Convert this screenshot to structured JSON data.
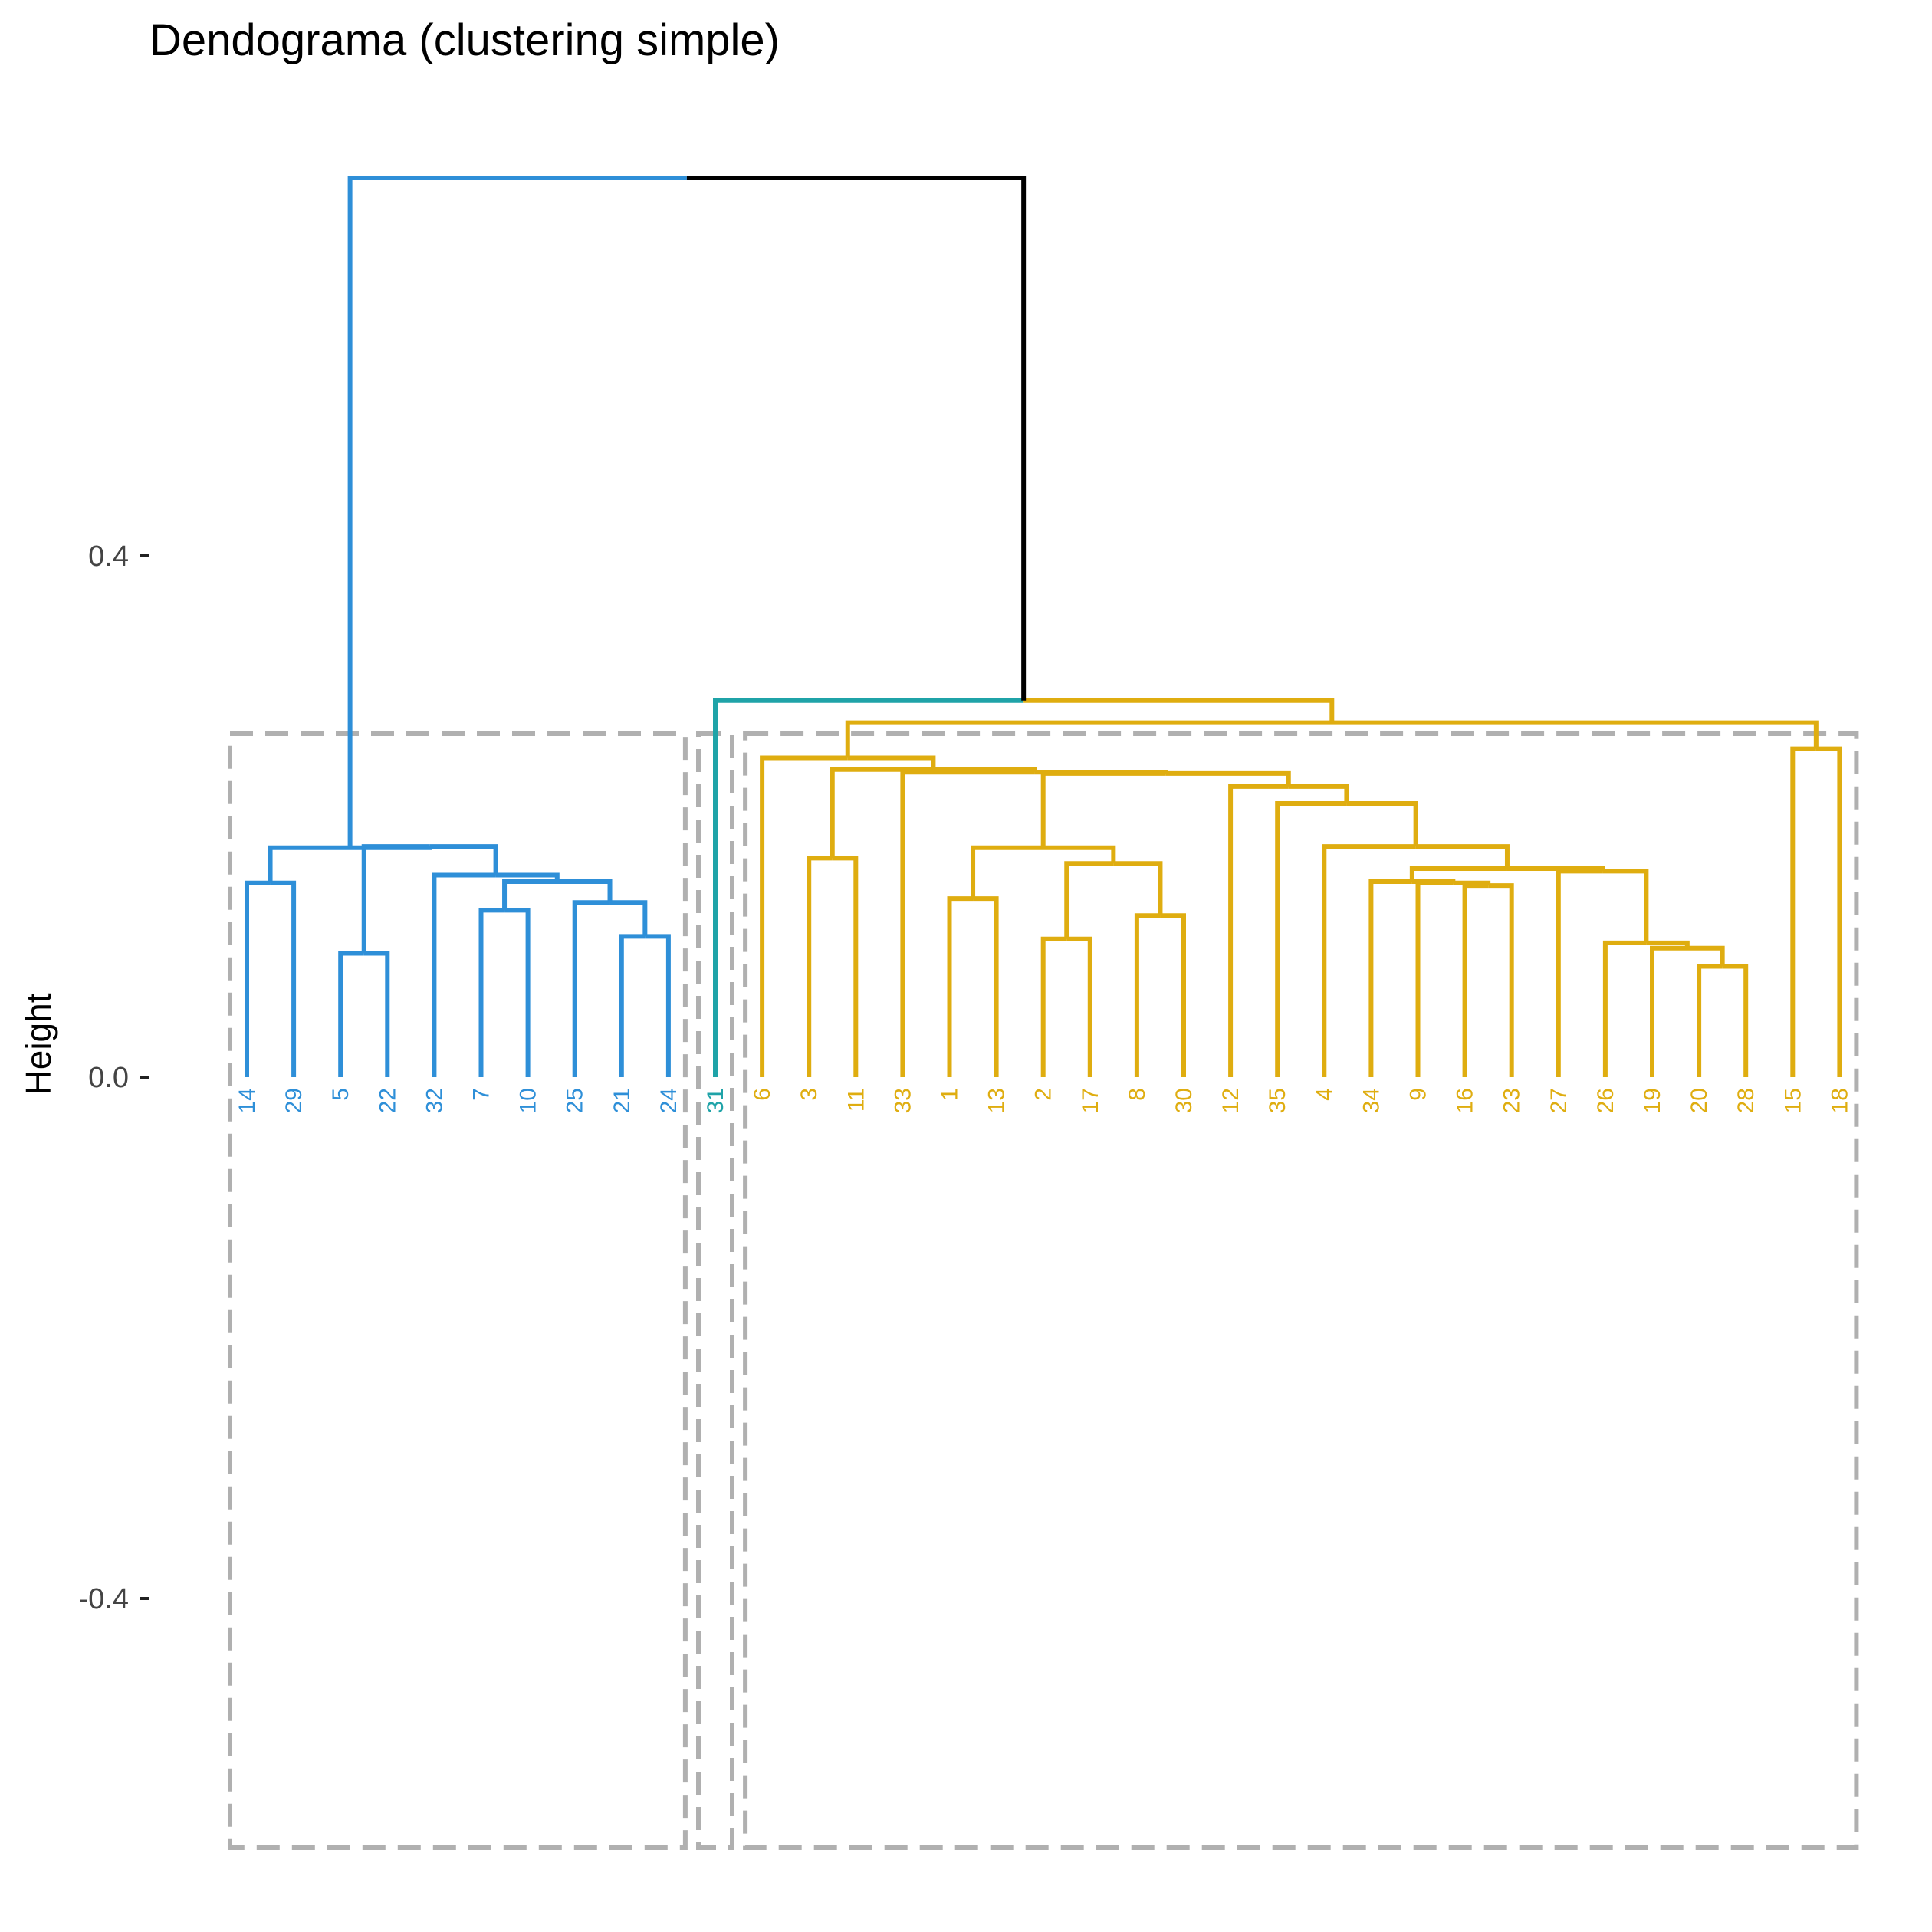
{
  "chart_data": {
    "type": "dendrogram",
    "title": "Dendograma (clustering simple)",
    "ylabel": "Height",
    "ylim": [
      -0.6,
      0.7
    ],
    "yticks": [
      0.4,
      0.0,
      -0.4
    ],
    "ytick_labels": [
      "0.4",
      "0.0",
      "-0.4"
    ],
    "grid": false,
    "legend": "none",
    "leaves": [
      {
        "label": "14",
        "cluster": 1
      },
      {
        "label": "29",
        "cluster": 1
      },
      {
        "label": "5",
        "cluster": 1
      },
      {
        "label": "22",
        "cluster": 1
      },
      {
        "label": "32",
        "cluster": 1
      },
      {
        "label": "7",
        "cluster": 1
      },
      {
        "label": "10",
        "cluster": 1
      },
      {
        "label": "25",
        "cluster": 1
      },
      {
        "label": "21",
        "cluster": 1
      },
      {
        "label": "24",
        "cluster": 1
      },
      {
        "label": "31",
        "cluster": 2
      },
      {
        "label": "6",
        "cluster": 3
      },
      {
        "label": "3",
        "cluster": 3
      },
      {
        "label": "11",
        "cluster": 3
      },
      {
        "label": "33",
        "cluster": 3
      },
      {
        "label": "1",
        "cluster": 3
      },
      {
        "label": "13",
        "cluster": 3
      },
      {
        "label": "2",
        "cluster": 3
      },
      {
        "label": "17",
        "cluster": 3
      },
      {
        "label": "8",
        "cluster": 3
      },
      {
        "label": "30",
        "cluster": 3
      },
      {
        "label": "12",
        "cluster": 3
      },
      {
        "label": "35",
        "cluster": 3
      },
      {
        "label": "4",
        "cluster": 3
      },
      {
        "label": "34",
        "cluster": 3
      },
      {
        "label": "9",
        "cluster": 3
      },
      {
        "label": "16",
        "cluster": 3
      },
      {
        "label": "23",
        "cluster": 3
      },
      {
        "label": "27",
        "cluster": 3
      },
      {
        "label": "26",
        "cluster": 3
      },
      {
        "label": "19",
        "cluster": 3
      },
      {
        "label": "20",
        "cluster": 3
      },
      {
        "label": "28",
        "cluster": 3
      },
      {
        "label": "15",
        "cluster": 3
      },
      {
        "label": "18",
        "cluster": 3
      }
    ],
    "merges": [
      {
        "a": "14",
        "b": "29",
        "height": 0.149
      },
      {
        "a": "5",
        "b": "22",
        "height": 0.095
      },
      {
        "a": "7",
        "b": "10",
        "height": 0.128
      },
      {
        "a": "21",
        "b": "24",
        "height": 0.108
      },
      {
        "a": "25",
        "b": [
          "21",
          "24"
        ],
        "height": 0.134
      },
      {
        "a": [
          "7",
          "10"
        ],
        "b": [
          "25",
          "21",
          "24"
        ],
        "height": 0.15
      },
      {
        "a": "32",
        "b": [
          "7",
          "10",
          "25",
          "21",
          "24"
        ],
        "height": 0.155
      },
      {
        "a": [
          "5",
          "22"
        ],
        "b": [
          "32",
          "7",
          "10",
          "25",
          "21",
          "24"
        ],
        "height": 0.177
      },
      {
        "a": [
          "14",
          "29"
        ],
        "b": [
          "5",
          "22",
          "32",
          "7",
          "10",
          "25",
          "21",
          "24"
        ],
        "height": 0.176
      },
      {
        "a": "3",
        "b": "11",
        "height": 0.168
      },
      {
        "a": "1",
        "b": "13",
        "height": 0.137
      },
      {
        "a": "2",
        "b": "17",
        "height": 0.106
      },
      {
        "a": "8",
        "b": "30",
        "height": 0.124
      },
      {
        "a": [
          "2",
          "17"
        ],
        "b": [
          "8",
          "30"
        ],
        "height": 0.164
      },
      {
        "a": [
          "1",
          "13"
        ],
        "b": [
          "2",
          "17",
          "8",
          "30"
        ],
        "height": 0.176
      },
      {
        "a": "20",
        "b": "28",
        "height": 0.085
      },
      {
        "a": "19",
        "b": [
          "20",
          "28"
        ],
        "height": 0.099
      },
      {
        "a": "26",
        "b": [
          "19",
          "20",
          "28"
        ],
        "height": 0.103
      },
      {
        "a": "27",
        "b": [
          "26",
          "19",
          "20",
          "28"
        ],
        "height": 0.158
      },
      {
        "a": "16",
        "b": "23",
        "height": 0.147
      },
      {
        "a": "9",
        "b": [
          "16",
          "23"
        ],
        "height": 0.149
      },
      {
        "a": "34",
        "b": [
          "9",
          "16",
          "23"
        ],
        "height": 0.15
      },
      {
        "a": [
          "34",
          "9",
          "16",
          "23"
        ],
        "b": [
          "27",
          "26",
          "19",
          "20",
          "28"
        ],
        "height": 0.16
      },
      {
        "a": "4",
        "b": [
          "34",
          "9",
          "16",
          "23",
          "27",
          "26",
          "19",
          "20",
          "28"
        ],
        "height": 0.177
      },
      {
        "a": "35",
        "b": [
          "4",
          "34",
          "9",
          "16",
          "23",
          "27",
          "26",
          "19",
          "20",
          "28"
        ],
        "height": 0.21
      },
      {
        "a": "12",
        "b": [
          "35",
          "4",
          "34",
          "9",
          "16",
          "23",
          "27",
          "26",
          "19",
          "20",
          "28"
        ],
        "height": 0.223
      },
      {
        "a": [
          "1",
          "13",
          "2",
          "17",
          "8",
          "30"
        ],
        "b": [
          "12",
          "35",
          "4",
          "34",
          "9",
          "16",
          "23",
          "27",
          "26",
          "19",
          "20",
          "28"
        ],
        "height": 0.233
      },
      {
        "a": "33",
        "b": [
          "1",
          "13",
          "2",
          "17",
          "8",
          "30",
          "12",
          "35",
          "4",
          "34",
          "9",
          "16",
          "23",
          "27",
          "26",
          "19",
          "20",
          "28"
        ],
        "height": 0.234
      },
      {
        "a": [
          "3",
          "11"
        ],
        "b": [
          "33",
          "1",
          "13",
          "2",
          "17",
          "8",
          "30",
          "12",
          "35",
          "4",
          "34",
          "9",
          "16",
          "23",
          "27",
          "26",
          "19",
          "20",
          "28"
        ],
        "height": 0.236
      },
      {
        "a": "6",
        "b": [
          "3",
          "11",
          "33",
          "1",
          "13",
          "2",
          "17",
          "8",
          "30",
          "12",
          "35",
          "4",
          "34",
          "9",
          "16",
          "23",
          "27",
          "26",
          "19",
          "20",
          "28"
        ],
        "height": 0.245
      },
      {
        "a": "15",
        "b": "18",
        "height": 0.252
      },
      {
        "a": [
          "6",
          "3",
          "11",
          "33",
          "1",
          "13",
          "2",
          "17",
          "8",
          "30",
          "12",
          "35",
          "4",
          "34",
          "9",
          "16",
          "23",
          "27",
          "26",
          "19",
          "20",
          "28"
        ],
        "b": [
          "15",
          "18"
        ],
        "height": 0.272
      },
      {
        "a": "31",
        "b": [
          "6",
          "3",
          "11",
          "33",
          "1",
          "13",
          "2",
          "17",
          "8",
          "30",
          "12",
          "35",
          "4",
          "34",
          "9",
          "16",
          "23",
          "27",
          "26",
          "19",
          "20",
          "28",
          "15",
          "18"
        ],
        "height": 0.289
      },
      {
        "a": [
          "14",
          "29",
          "5",
          "22",
          "32",
          "7",
          "10",
          "25",
          "21",
          "24"
        ],
        "b": [
          "31",
          "6",
          "3",
          "11",
          "33",
          "1",
          "13",
          "2",
          "17",
          "8",
          "30",
          "12",
          "35",
          "4",
          "34",
          "9",
          "16",
          "23",
          "27",
          "26",
          "19",
          "20",
          "28",
          "15",
          "18"
        ],
        "height": 0.69
      }
    ],
    "clusters": [
      {
        "id": 1,
        "color": "#2E8FD8"
      },
      {
        "id": 2,
        "color": "#1FA3A8"
      },
      {
        "id": 3,
        "color": "#DFAD10"
      }
    ],
    "root_color": "#000000",
    "rect_color": "#B0B0B0"
  }
}
